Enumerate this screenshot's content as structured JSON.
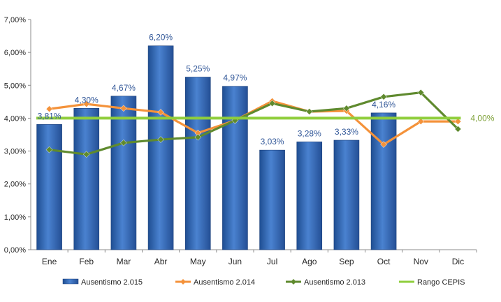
{
  "chart_data": {
    "type": "bar",
    "categories": [
      "Ene",
      "Feb",
      "Mar",
      "Abr",
      "May",
      "Jun",
      "Jul",
      "Ago",
      "Sep",
      "Oct",
      "Nov",
      "Dic"
    ],
    "ylim": [
      0,
      7
    ],
    "y_ticks": [
      "0,00%",
      "1,00%",
      "2,00%",
      "3,00%",
      "4,00%",
      "5,00%",
      "6,00%",
      "7,00%"
    ],
    "grid": false,
    "legend_position": "bottom",
    "series": [
      {
        "name": "Ausentismo 2.015",
        "kind": "bar",
        "color": "#2e62b0",
        "values": [
          3.81,
          4.3,
          4.67,
          6.2,
          5.25,
          4.97,
          3.03,
          3.28,
          3.33,
          4.16,
          null,
          null
        ],
        "labels": [
          "3,81%",
          "4,30%",
          "4,67%",
          "6,20%",
          "5,25%",
          "4,97%",
          "3,03%",
          "3,28%",
          "3,33%",
          "4,16%",
          "",
          ""
        ]
      },
      {
        "name": "Ausentismo 2.014",
        "kind": "line",
        "color": "#f4923a",
        "values": [
          4.28,
          4.43,
          4.3,
          4.18,
          3.55,
          3.93,
          4.52,
          4.2,
          4.22,
          3.2,
          3.9,
          3.9
        ]
      },
      {
        "name": "Ausentismo 2.013",
        "kind": "line",
        "color": "#5f8a2e",
        "values": [
          3.04,
          2.9,
          3.25,
          3.35,
          3.42,
          3.93,
          4.45,
          4.2,
          4.3,
          4.65,
          4.78,
          3.67
        ]
      },
      {
        "name": "Rango CEPIS",
        "kind": "line",
        "color": "#8fce3c",
        "values": [
          4,
          4,
          4,
          4,
          4,
          4,
          4,
          4,
          4,
          4,
          4,
          4
        ],
        "end_label": "4,00%"
      }
    ]
  }
}
